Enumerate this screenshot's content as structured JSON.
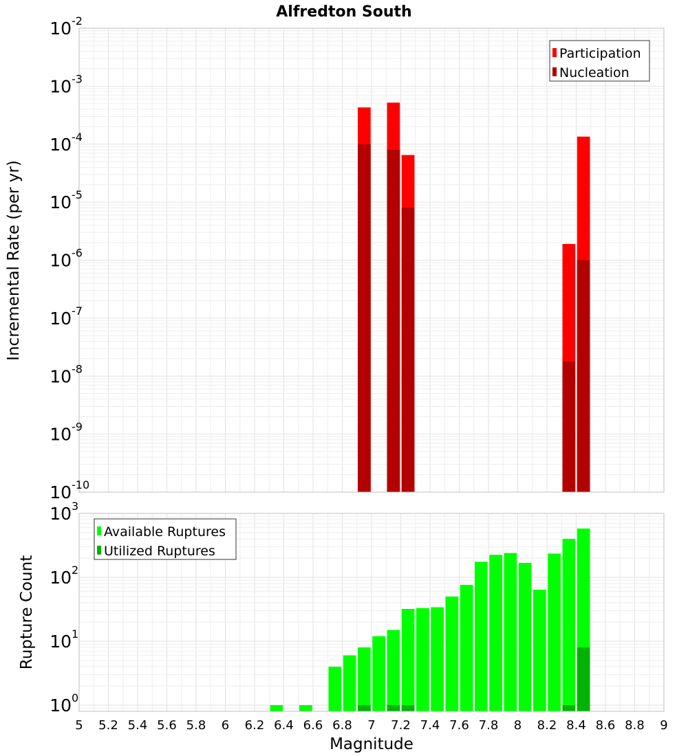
{
  "title": "Alfredton South",
  "chart_data": [
    {
      "type": "bar",
      "panel": "top",
      "ylabel": "Incremental Rate (per yr)",
      "yscale": "log",
      "ylim": [
        1e-10,
        0.01
      ],
      "xlim": [
        5,
        9
      ],
      "y_ticks": [
        {
          "base": "10",
          "exp": "-10",
          "value": 1e-10
        },
        {
          "base": "10",
          "exp": "-9",
          "value": 1e-09
        },
        {
          "base": "10",
          "exp": "-8",
          "value": 1e-08
        },
        {
          "base": "10",
          "exp": "-7",
          "value": 1e-07
        },
        {
          "base": "10",
          "exp": "-6",
          "value": 1e-06
        },
        {
          "base": "10",
          "exp": "-5",
          "value": 1e-05
        },
        {
          "base": "10",
          "exp": "-4",
          "value": 0.0001
        },
        {
          "base": "10",
          "exp": "-3",
          "value": 0.001
        },
        {
          "base": "10",
          "exp": "-2",
          "value": 0.01
        }
      ],
      "legend": {
        "position": "top-right",
        "entries": [
          {
            "label": "Participation",
            "color": "#ff0000"
          },
          {
            "label": "Nucleation",
            "color": "#b30000"
          }
        ]
      },
      "series": [
        {
          "name": "Participation",
          "color": "#ff0000",
          "points": [
            {
              "x": 6.95,
              "y": 0.00043
            },
            {
              "x": 7.15,
              "y": 0.00052
            },
            {
              "x": 7.25,
              "y": 6.5e-05
            },
            {
              "x": 8.35,
              "y": 1.9e-06
            },
            {
              "x": 8.45,
              "y": 0.000135
            }
          ]
        },
        {
          "name": "Nucleation",
          "color": "#b30000",
          "points": [
            {
              "x": 6.95,
              "y": 0.0001
            },
            {
              "x": 7.15,
              "y": 8e-05
            },
            {
              "x": 7.25,
              "y": 8e-06
            },
            {
              "x": 8.35,
              "y": 1.8e-08
            },
            {
              "x": 8.45,
              "y": 1e-06
            }
          ]
        }
      ]
    },
    {
      "type": "bar",
      "panel": "bottom",
      "ylabel": "Rupture Count",
      "xlabel": "Magnitude",
      "yscale": "log",
      "ylim": [
        0.8,
        1000
      ],
      "xlim": [
        5,
        9
      ],
      "x_ticks": [
        "5",
        "5.2",
        "5.4",
        "5.6",
        "5.8",
        "6",
        "6.2",
        "6.4",
        "6.6",
        "6.8",
        "7",
        "7.2",
        "7.4",
        "7.6",
        "7.8",
        "8",
        "8.2",
        "8.4",
        "8.6",
        "8.8",
        "9"
      ],
      "y_ticks": [
        {
          "base": "10",
          "exp": "0",
          "value": 1
        },
        {
          "base": "10",
          "exp": "1",
          "value": 10
        },
        {
          "base": "10",
          "exp": "2",
          "value": 100
        },
        {
          "base": "10",
          "exp": "3",
          "value": 1000
        }
      ],
      "legend": {
        "position": "top-left",
        "entries": [
          {
            "label": "Available Ruptures",
            "color": "#00ff00"
          },
          {
            "label": "Utilized Ruptures",
            "color": "#00b300"
          }
        ]
      },
      "series": [
        {
          "name": "Available Ruptures",
          "color": "#00ff00",
          "points": [
            {
              "x": 6.35,
              "y": 1
            },
            {
              "x": 6.55,
              "y": 1
            },
            {
              "x": 6.75,
              "y": 4
            },
            {
              "x": 6.85,
              "y": 6
            },
            {
              "x": 6.95,
              "y": 8
            },
            {
              "x": 7.05,
              "y": 12
            },
            {
              "x": 7.15,
              "y": 15
            },
            {
              "x": 7.25,
              "y": 32
            },
            {
              "x": 7.35,
              "y": 33
            },
            {
              "x": 7.45,
              "y": 34
            },
            {
              "x": 7.55,
              "y": 50
            },
            {
              "x": 7.65,
              "y": 76
            },
            {
              "x": 7.75,
              "y": 175
            },
            {
              "x": 7.85,
              "y": 225
            },
            {
              "x": 7.95,
              "y": 240
            },
            {
              "x": 8.05,
              "y": 168
            },
            {
              "x": 8.15,
              "y": 64
            },
            {
              "x": 8.25,
              "y": 235
            },
            {
              "x": 8.35,
              "y": 400
            },
            {
              "x": 8.45,
              "y": 580
            }
          ]
        },
        {
          "name": "Utilized Ruptures",
          "color": "#00b300",
          "points": [
            {
              "x": 6.95,
              "y": 1
            },
            {
              "x": 7.15,
              "y": 1
            },
            {
              "x": 7.25,
              "y": 1
            },
            {
              "x": 8.35,
              "y": 1
            },
            {
              "x": 8.45,
              "y": 8
            }
          ]
        }
      ]
    }
  ]
}
